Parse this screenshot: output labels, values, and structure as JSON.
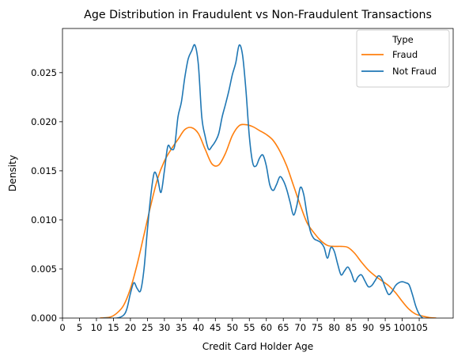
{
  "chart_data": {
    "type": "line",
    "title": "Age Distribution in Fraudulent vs Non-Fraudulent Transactions",
    "xlabel": "Credit Card Holder Age",
    "ylabel": "Density",
    "xlim": [
      0,
      115
    ],
    "ylim": [
      0,
      0.0295
    ],
    "x_ticks": [
      0,
      5,
      10,
      15,
      20,
      25,
      30,
      35,
      40,
      45,
      50,
      55,
      60,
      65,
      70,
      75,
      80,
      85,
      90,
      95,
      100,
      105
    ],
    "y_ticks": [
      0.0,
      0.005,
      0.01,
      0.015,
      0.02,
      0.025
    ],
    "y_tick_labels": [
      "0.000",
      "0.005",
      "0.010",
      "0.015",
      "0.020",
      "0.025"
    ],
    "grid": false,
    "legend": {
      "title": "Type",
      "placement": "top-right"
    },
    "series": [
      {
        "name": "Fraud",
        "color": "#ff7f0e",
        "x": [
          11,
          14,
          16,
          18,
          20,
          22,
          24,
          26,
          28,
          30,
          32,
          34,
          36,
          38,
          40,
          42,
          44,
          46,
          48,
          50,
          52,
          54,
          56,
          58,
          60,
          62,
          64,
          66,
          68,
          70,
          72,
          74,
          76,
          78,
          80,
          82,
          84,
          86,
          88,
          90,
          92,
          94,
          96,
          98,
          100,
          102,
          104,
          106,
          108,
          110
        ],
        "y": [
          0.0,
          0.0001,
          0.0005,
          0.0013,
          0.003,
          0.0055,
          0.0085,
          0.0115,
          0.0142,
          0.016,
          0.0172,
          0.0182,
          0.0192,
          0.0194,
          0.0188,
          0.0172,
          0.0157,
          0.0156,
          0.0168,
          0.0186,
          0.0196,
          0.0197,
          0.0195,
          0.0191,
          0.0187,
          0.0181,
          0.017,
          0.0155,
          0.0135,
          0.0115,
          0.0097,
          0.0087,
          0.0079,
          0.0074,
          0.0073,
          0.0073,
          0.0072,
          0.0066,
          0.0057,
          0.0049,
          0.0043,
          0.0038,
          0.0033,
          0.0026,
          0.0017,
          0.0009,
          0.0004,
          0.0002,
          5e-05,
          0.0
        ]
      },
      {
        "name": "Not Fraud",
        "color": "#1f77b4",
        "x": [
          12,
          16,
          18,
          19,
          20,
          21,
          22,
          23,
          24,
          25,
          26,
          27,
          28,
          29,
          30,
          31,
          32,
          33,
          34,
          35,
          36,
          37,
          38,
          39,
          40,
          41,
          42,
          43,
          44,
          45,
          46,
          47,
          48,
          49,
          50,
          51,
          52,
          53,
          54,
          55,
          56,
          57,
          58,
          59,
          60,
          61,
          62,
          63,
          64,
          65,
          66,
          67,
          68,
          69,
          70,
          71,
          72,
          73,
          74,
          75,
          76,
          77,
          78,
          79,
          80,
          81,
          82,
          83,
          84,
          85,
          86,
          87,
          88,
          89,
          90,
          91,
          92,
          93,
          94,
          95,
          96,
          97,
          98,
          99,
          100,
          101,
          102,
          103,
          104,
          105,
          106
        ],
        "y": [
          0.0,
          0.0,
          0.0003,
          0.001,
          0.0025,
          0.0036,
          0.003,
          0.0028,
          0.005,
          0.009,
          0.0125,
          0.0148,
          0.0142,
          0.0128,
          0.015,
          0.0175,
          0.0172,
          0.0175,
          0.0205,
          0.022,
          0.0245,
          0.0264,
          0.0272,
          0.0278,
          0.0258,
          0.0205,
          0.0185,
          0.0172,
          0.0175,
          0.018,
          0.0188,
          0.0205,
          0.0218,
          0.0232,
          0.0248,
          0.026,
          0.0278,
          0.0268,
          0.0232,
          0.0185,
          0.0158,
          0.0155,
          0.0163,
          0.0166,
          0.0155,
          0.0136,
          0.013,
          0.0136,
          0.0144,
          0.014,
          0.0131,
          0.0118,
          0.0105,
          0.0115,
          0.0133,
          0.0126,
          0.0105,
          0.0088,
          0.0081,
          0.0079,
          0.0077,
          0.0072,
          0.0061,
          0.0072,
          0.0068,
          0.0055,
          0.0044,
          0.0048,
          0.0052,
          0.0046,
          0.0037,
          0.0042,
          0.0044,
          0.0038,
          0.0032,
          0.0033,
          0.0038,
          0.0043,
          0.004,
          0.0031,
          0.0024,
          0.0027,
          0.0033,
          0.0036,
          0.0037,
          0.0036,
          0.0034,
          0.0024,
          0.0012,
          0.0004,
          0.0
        ]
      }
    ]
  }
}
